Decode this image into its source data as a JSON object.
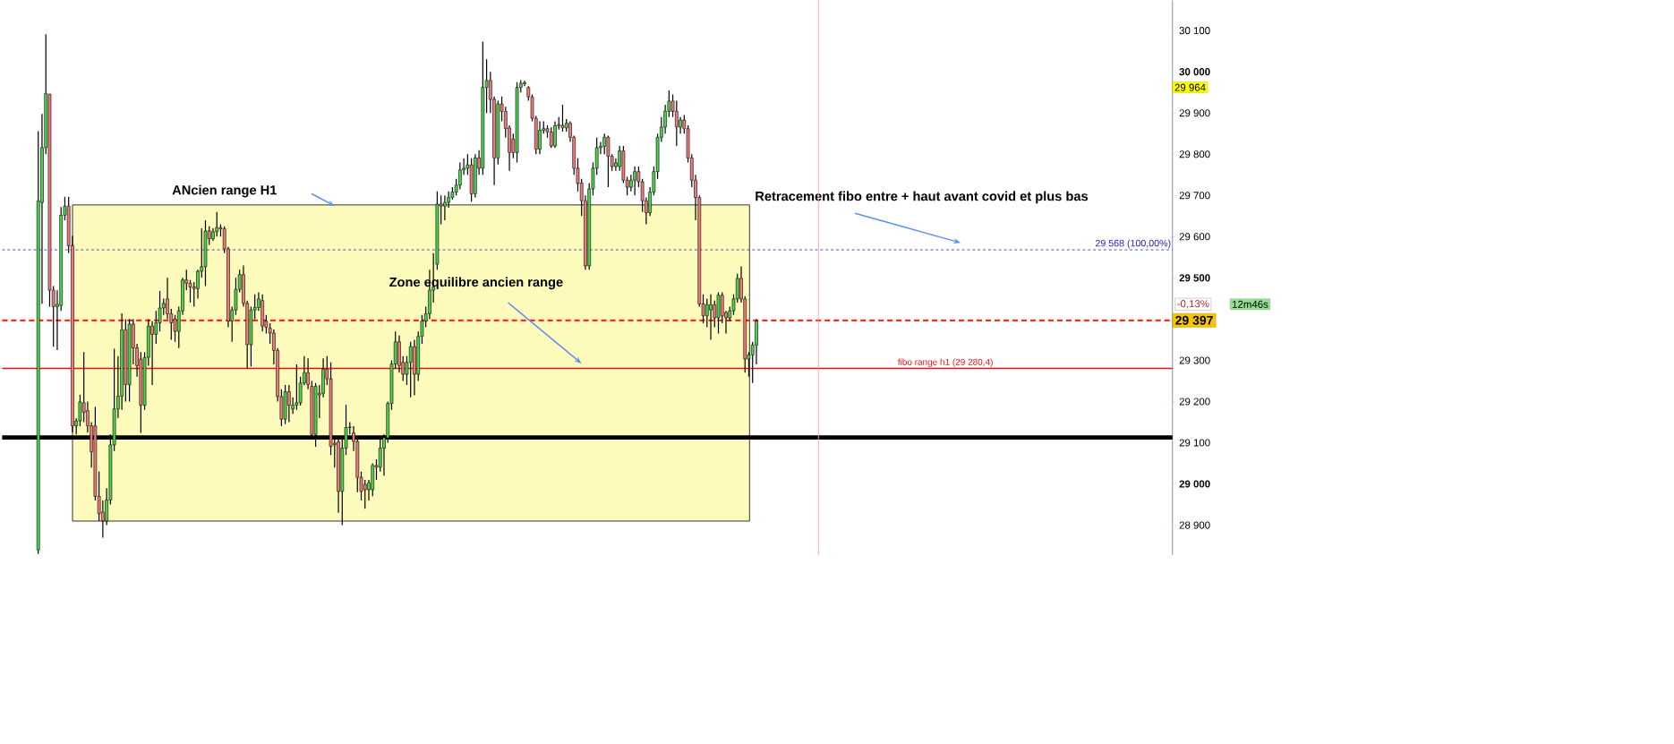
{
  "chart_data": {
    "type": "candlestick",
    "categories": [
      null,
      null,
      null,
      null,
      null,
      null,
      null,
      null,
      null,
      null,
      null,
      null,
      null,
      null,
      null,
      null,
      null,
      null,
      null,
      null,
      null,
      null,
      null,
      null,
      null,
      null,
      null,
      null,
      null,
      null,
      null,
      null,
      null,
      null,
      null,
      null,
      null,
      null,
      null,
      null,
      null,
      null,
      null,
      null,
      null,
      null,
      null,
      null,
      null,
      null,
      null,
      null,
      null,
      null,
      null,
      null,
      null,
      null,
      null,
      null,
      null,
      null,
      null,
      null,
      null,
      null,
      null,
      null,
      null,
      null,
      null,
      null,
      null,
      null,
      null,
      null,
      null,
      null,
      null,
      null,
      null,
      null,
      null,
      null,
      null,
      null,
      null,
      null,
      null,
      null,
      null,
      null,
      null,
      null,
      null,
      null,
      null,
      null,
      null,
      null,
      null,
      null,
      null,
      null,
      null,
      null,
      null,
      null,
      null,
      null,
      null,
      null,
      null,
      null,
      null,
      null,
      null,
      null,
      null,
      null,
      null,
      null,
      null,
      null,
      null,
      null,
      null,
      null,
      null,
      null,
      null,
      null,
      null,
      null,
      null,
      null,
      null,
      null,
      null,
      null,
      null,
      null,
      null,
      null,
      null,
      null,
      null,
      null,
      null,
      null,
      null,
      null,
      null,
      null,
      null,
      null,
      null,
      null,
      null,
      null,
      null,
      null,
      null,
      null,
      null,
      null,
      null,
      null,
      null,
      null,
      null,
      null,
      null,
      null,
      null,
      null,
      null,
      null,
      null,
      null,
      null,
      null,
      null,
      null,
      null,
      null,
      null,
      null,
      null,
      null,
      null,
      null,
      null,
      null,
      null,
      null,
      null,
      null,
      null,
      null,
      null,
      null,
      null,
      null,
      null,
      null,
      null,
      null,
      null,
      null,
      null,
      null,
      null,
      null,
      null,
      null,
      null,
      null,
      null,
      null,
      null,
      null,
      null,
      null,
      null,
      null,
      null,
      null,
      null,
      null,
      null,
      null,
      null,
      null,
      null,
      null,
      null,
      null,
      null,
      null,
      null,
      null,
      null,
      null,
      null,
      null,
      null,
      null,
      null,
      null,
      null,
      null,
      null,
      null,
      null,
      null,
      null,
      null,
      null,
      null,
      null,
      null,
      null,
      null,
      null,
      null,
      null,
      null,
      null,
      null,
      null,
      null,
      null,
      null,
      null,
      null,
      null,
      null,
      null,
      null,
      null,
      null,
      null,
      null,
      null,
      null,
      null,
      null,
      null,
      null,
      null,
      null,
      null,
      null,
      null,
      null,
      null,
      null,
      null,
      null,
      null,
      null,
      null,
      null,
      null,
      null,
      null,
      null
    ],
    "ohlc": [
      null,
      null,
      null,
      null,
      null,
      null,
      null,
      null,
      null,
      [
        28840,
        29856,
        28830,
        29687
      ],
      [
        29683,
        29898,
        29437,
        29816
      ],
      [
        29816,
        30091,
        29800,
        29947
      ],
      [
        29946,
        29946,
        29430,
        29470
      ],
      [
        29470,
        29480,
        29333,
        29430
      ],
      [
        29430,
        29470,
        29325,
        29436
      ],
      [
        29433,
        29672,
        29420,
        29652
      ],
      [
        29652,
        29697,
        29640,
        29674
      ],
      [
        29674,
        29697,
        29560,
        29578
      ],
      [
        29578,
        29602,
        29125,
        29141
      ],
      [
        29141,
        29160,
        29120,
        29153
      ],
      [
        29153,
        29216,
        29140,
        29199
      ],
      [
        29197,
        29320,
        29150,
        29174
      ],
      [
        29178,
        29200,
        29125,
        29141
      ],
      [
        29141,
        29150,
        29040,
        29078
      ],
      [
        29141,
        29187,
        28960,
        28970
      ],
      [
        28970,
        29030,
        28910,
        28928
      ],
      [
        28932,
        28960,
        28870,
        28910
      ],
      [
        28910,
        28990,
        28900,
        28961
      ],
      [
        28961,
        29120,
        28950,
        29095
      ],
      [
        29095,
        29328,
        29080,
        29182
      ],
      [
        29182,
        29310,
        29160,
        29213
      ],
      [
        29213,
        29414,
        29180,
        29374
      ],
      [
        29374,
        29400,
        29200,
        29241
      ],
      [
        29241,
        29400,
        29200,
        29388
      ],
      [
        29388,
        29400,
        29290,
        29330
      ],
      [
        29330,
        29340,
        29260,
        29287
      ],
      [
        29303,
        29320,
        29124,
        29191
      ],
      [
        29191,
        29320,
        29180,
        29307
      ],
      [
        29307,
        29400,
        29287,
        29383
      ],
      [
        29383,
        29395,
        29240,
        29363
      ],
      [
        29363,
        29420,
        29340,
        29391
      ],
      [
        29391,
        29468,
        29370,
        29427
      ],
      [
        29427,
        29450,
        29410,
        29438
      ],
      [
        29449,
        29500,
        29400,
        29413
      ],
      [
        29413,
        29425,
        29350,
        29391
      ],
      [
        29400,
        29410,
        29345,
        29370
      ],
      [
        29370,
        29430,
        29330,
        29420
      ],
      [
        29420,
        29500,
        29410,
        29495
      ],
      [
        29495,
        29520,
        29470,
        29487
      ],
      [
        29487,
        29495,
        29440,
        29478
      ],
      [
        29478,
        29490,
        29430,
        29474
      ],
      [
        29474,
        29520,
        29450,
        29516
      ],
      [
        29516,
        29620,
        29500,
        29527
      ],
      [
        29527,
        29640,
        29480,
        29614
      ],
      [
        29614,
        29625,
        29580,
        29595
      ],
      [
        29595,
        29620,
        29590,
        29612
      ],
      [
        29612,
        29660,
        29600,
        29622
      ],
      [
        29622,
        29630,
        29600,
        29619
      ],
      [
        29619,
        29625,
        29560,
        29570
      ],
      [
        29570,
        29575,
        29380,
        29395
      ],
      [
        29395,
        29430,
        29345,
        29422
      ],
      [
        29422,
        29500,
        29410,
        29472
      ],
      [
        29472,
        29520,
        29465,
        29508
      ],
      [
        29508,
        29530,
        29430,
        29438
      ],
      [
        29438,
        29445,
        29280,
        29338
      ],
      [
        29338,
        29430,
        29285,
        29422
      ],
      [
        29422,
        29460,
        29400,
        29428
      ],
      [
        29428,
        29465,
        29420,
        29449
      ],
      [
        29445,
        29460,
        29370,
        29383
      ],
      [
        29395,
        29410,
        29365,
        29380
      ],
      [
        29378,
        29390,
        29340,
        29366
      ],
      [
        29366,
        29375,
        29290,
        29324
      ],
      [
        29324,
        29330,
        29200,
        29212
      ],
      [
        29212,
        29230,
        29140,
        29157
      ],
      [
        29157,
        29240,
        29145,
        29224
      ],
      [
        29224,
        29240,
        29150,
        29191
      ],
      [
        29182,
        29210,
        29170,
        29191
      ],
      [
        29191,
        29290,
        29180,
        29197
      ],
      [
        29197,
        29260,
        29190,
        29245
      ],
      [
        29245,
        29310,
        29240,
        29270
      ],
      [
        29270,
        29305,
        29230,
        29241
      ],
      [
        29237,
        29250,
        29110,
        29120
      ],
      [
        29120,
        29245,
        29090,
        29237
      ],
      [
        29216,
        29240,
        29160,
        29220
      ],
      [
        29220,
        29305,
        29210,
        29278
      ],
      [
        29278,
        29310,
        29240,
        29255
      ],
      [
        29255,
        29295,
        29070,
        29091
      ],
      [
        29099,
        29110,
        29040,
        29095
      ],
      [
        29102,
        29110,
        28930,
        28982
      ],
      [
        28982,
        29110,
        28900,
        29087
      ],
      [
        29087,
        29192,
        29070,
        29137
      ],
      [
        29137,
        29150,
        29120,
        29138
      ],
      [
        29124,
        29140,
        29080,
        29103
      ],
      [
        29103,
        29115,
        28980,
        29016
      ],
      [
        29016,
        29030,
        28960,
        28982
      ],
      [
        28999,
        29010,
        28940,
        28986
      ],
      [
        28986,
        29010,
        28960,
        29003
      ],
      [
        28986,
        29050,
        28970,
        29045
      ],
      [
        29045,
        29060,
        29010,
        29041
      ],
      [
        29041,
        29110,
        29030,
        29087
      ],
      [
        29087,
        29120,
        29020,
        29112
      ],
      [
        29112,
        29200,
        29100,
        29195
      ],
      [
        29195,
        29300,
        29180,
        29291
      ],
      [
        29291,
        29370,
        29280,
        29345
      ],
      [
        29345,
        29360,
        29270,
        29287
      ],
      [
        29295,
        29310,
        29250,
        29266
      ],
      [
        29266,
        29310,
        29240,
        29295
      ],
      [
        29295,
        29345,
        29210,
        29333
      ],
      [
        29333,
        29350,
        29215,
        29266
      ],
      [
        29266,
        29370,
        29250,
        29358
      ],
      [
        29358,
        29410,
        29340,
        29395
      ],
      [
        29395,
        29430,
        29380,
        29413
      ],
      [
        29413,
        29520,
        29400,
        29470
      ],
      [
        29470,
        29560,
        29440,
        29478
      ],
      [
        29533,
        29710,
        29520,
        29679
      ],
      [
        29679,
        29700,
        29630,
        29674
      ],
      [
        29674,
        29700,
        29640,
        29683
      ],
      [
        29683,
        29710,
        29670,
        29695
      ],
      [
        29695,
        29720,
        29690,
        29708
      ],
      [
        29708,
        29740,
        29700,
        29725
      ],
      [
        29725,
        29780,
        29715,
        29762
      ],
      [
        29762,
        29790,
        29750,
        29766
      ],
      [
        29766,
        29800,
        29750,
        29774
      ],
      [
        29774,
        29790,
        29685,
        29704
      ],
      [
        29704,
        29800,
        29695,
        29791
      ],
      [
        29791,
        29810,
        29750,
        29766
      ],
      [
        29766,
        30073,
        29750,
        29962
      ],
      [
        29962,
        30030,
        29900,
        29979
      ],
      [
        29979,
        30000,
        29900,
        29933
      ],
      [
        29933,
        29940,
        29725,
        29791
      ],
      [
        29791,
        29930,
        29775,
        29922
      ],
      [
        29922,
        29940,
        29880,
        29904
      ],
      [
        29904,
        29915,
        29840,
        29862
      ],
      [
        29864,
        29870,
        29760,
        29804
      ],
      [
        29837,
        29850,
        29790,
        29804
      ],
      [
        29804,
        29975,
        29780,
        29962
      ],
      [
        29962,
        29980,
        29950,
        29972
      ],
      [
        29974,
        29978,
        29965,
        29971
      ],
      [
        29962,
        29965,
        29930,
        29939
      ],
      [
        29939,
        29945,
        29880,
        29887
      ],
      [
        29887,
        29893,
        29800,
        29812
      ],
      [
        29812,
        29880,
        29800,
        29858
      ],
      [
        29858,
        29880,
        29850,
        29862
      ],
      [
        29862,
        29870,
        29840,
        29854
      ],
      [
        29854,
        29865,
        29815,
        29820
      ],
      [
        29820,
        29880,
        29815,
        29869
      ],
      [
        29869,
        29890,
        29860,
        29872
      ],
      [
        29870,
        29920,
        29855,
        29864
      ],
      [
        29864,
        29885,
        29855,
        29875
      ],
      [
        29875,
        29880,
        29830,
        29841
      ],
      [
        29841,
        29845,
        29750,
        29766
      ],
      [
        29766,
        29790,
        29710,
        29729
      ],
      [
        29730,
        29740,
        29650,
        29687
      ],
      [
        29687,
        29700,
        29520,
        29529
      ],
      [
        29529,
        29730,
        29520,
        29716
      ],
      [
        29716,
        29780,
        29700,
        29766
      ],
      [
        29766,
        29840,
        29750,
        29816
      ],
      [
        29816,
        29830,
        29800,
        29819
      ],
      [
        29819,
        29850,
        29800,
        29841
      ],
      [
        29841,
        29845,
        29720,
        29795
      ],
      [
        29795,
        29800,
        29760,
        29770
      ],
      [
        29770,
        29790,
        29760,
        29779
      ],
      [
        29770,
        29820,
        29760,
        29808
      ],
      [
        29808,
        29820,
        29730,
        29737
      ],
      [
        29737,
        29745,
        29700,
        29720
      ],
      [
        29720,
        29750,
        29710,
        29737
      ],
      [
        29737,
        29770,
        29700,
        29758
      ],
      [
        29758,
        29770,
        29720,
        29733
      ],
      [
        29733,
        29740,
        29660,
        29687
      ],
      [
        29687,
        29695,
        29630,
        29658
      ],
      [
        29658,
        29720,
        29650,
        29708
      ],
      [
        29708,
        29770,
        29700,
        29758
      ],
      [
        29758,
        29850,
        29740,
        29841
      ],
      [
        29841,
        29890,
        29830,
        29866
      ],
      [
        29866,
        29920,
        29850,
        29904
      ],
      [
        29904,
        29955,
        29890,
        29929
      ],
      [
        29929,
        29945,
        29890,
        29904
      ],
      [
        29904,
        29930,
        29820,
        29866
      ],
      [
        29866,
        29890,
        29850,
        29883
      ],
      [
        29883,
        29895,
        29850,
        29862
      ],
      [
        29862,
        29870,
        29780,
        29791
      ],
      [
        29791,
        29800,
        29720,
        29737
      ],
      [
        29737,
        29750,
        29640,
        29695
      ],
      [
        29695,
        29700,
        29430,
        29437
      ],
      [
        29437,
        29460,
        29390,
        29408
      ],
      [
        29408,
        29450,
        29380,
        29435
      ],
      [
        29422,
        29460,
        29350,
        29435
      ],
      [
        29435,
        29445,
        29380,
        29403
      ],
      [
        29403,
        29465,
        29365,
        29458
      ],
      [
        29458,
        29465,
        29390,
        29408
      ],
      [
        29416,
        29420,
        29365,
        29403
      ],
      [
        29403,
        29430,
        29395,
        29420
      ],
      [
        29420,
        29460,
        29410,
        29449
      ],
      [
        29449,
        29510,
        29440,
        29499
      ],
      [
        29499,
        29528,
        29440,
        29449
      ],
      [
        29449,
        29455,
        29270,
        29303
      ],
      [
        29303,
        29320,
        29260,
        29313
      ],
      [
        29313,
        29345,
        29245,
        29337
      ],
      [
        29337,
        29400,
        29290,
        29395
      ],
      null,
      null,
      null,
      null,
      null,
      null,
      null,
      null,
      null,
      null,
      null,
      null,
      null,
      null,
      null,
      null,
      null,
      null,
      null,
      null,
      null,
      null,
      null,
      null,
      null,
      null,
      null,
      null,
      null,
      null,
      null,
      null,
      null,
      null,
      null,
      null,
      null,
      null,
      null,
      null,
      null,
      null,
      null,
      null,
      null,
      null,
      null,
      null,
      null,
      null,
      null,
      null,
      null,
      null,
      null,
      null,
      null,
      null,
      null,
      null,
      null,
      null,
      null,
      null,
      null,
      null,
      null,
      null,
      null,
      null,
      null,
      null,
      null,
      null,
      null,
      null,
      null,
      null,
      null,
      null,
      null,
      null,
      null,
      null,
      null,
      null,
      null,
      null,
      null,
      null,
      null,
      null,
      null,
      null,
      null,
      null,
      null,
      null,
      null,
      null,
      null,
      null,
      null,
      null,
      null,
      null,
      null,
      null,
      null
    ],
    "ylim": [
      28828,
      30173
    ],
    "yticks": [
      {
        "value": 28900,
        "label": "28 900"
      },
      {
        "value": 29000,
        "label": "**29 000**"
      },
      {
        "value": 29100,
        "label": "29 100"
      },
      {
        "value": 29200,
        "label": "29 200"
      },
      {
        "value": 29300,
        "label": "29 300"
      },
      {
        "value": 29500,
        "label": "**29 500**"
      },
      {
        "value": 29600,
        "label": "29 600"
      },
      {
        "value": 29700,
        "label": "29 700"
      },
      {
        "value": 29800,
        "label": "29 800"
      },
      {
        "value": 29900,
        "label": "29 900"
      },
      {
        "value": 30000,
        "label": "**30 000**"
      },
      {
        "value": 30100,
        "label": "30 100"
      }
    ],
    "tick_labels": "y",
    "bands": [
      {
        "axis": "y",
        "from": 28910,
        "to": 29677,
        "color": "#fdfbbb"
      }
    ],
    "ref_lines": [
      {
        "axis": "y",
        "value": 29568,
        "label": "29 568 (100,00%)",
        "color": "#2222bb",
        "line_style": "dotted"
      },
      {
        "axis": "y",
        "value": 29397,
        "label": "29 397",
        "color": "#ff2a2a",
        "line_style": "dashed"
      },
      {
        "axis": "y",
        "value": 29280.4,
        "label": "fibo range h1 (29 280,4)",
        "color": "#ee1111",
        "line_style": "solid"
      },
      {
        "axis": "y",
        "value": 29113,
        "color": "#000000",
        "line_style": "solid"
      }
    ],
    "annotations": [
      "ANcien range H1",
      "Zone equilibre ancien range",
      "Retracement fibo entre + haut avant covid et plus bas",
      {
        "text": "29 964",
        "y": 29962
      },
      "-0,13%",
      "12m46s"
    ]
  }
}
